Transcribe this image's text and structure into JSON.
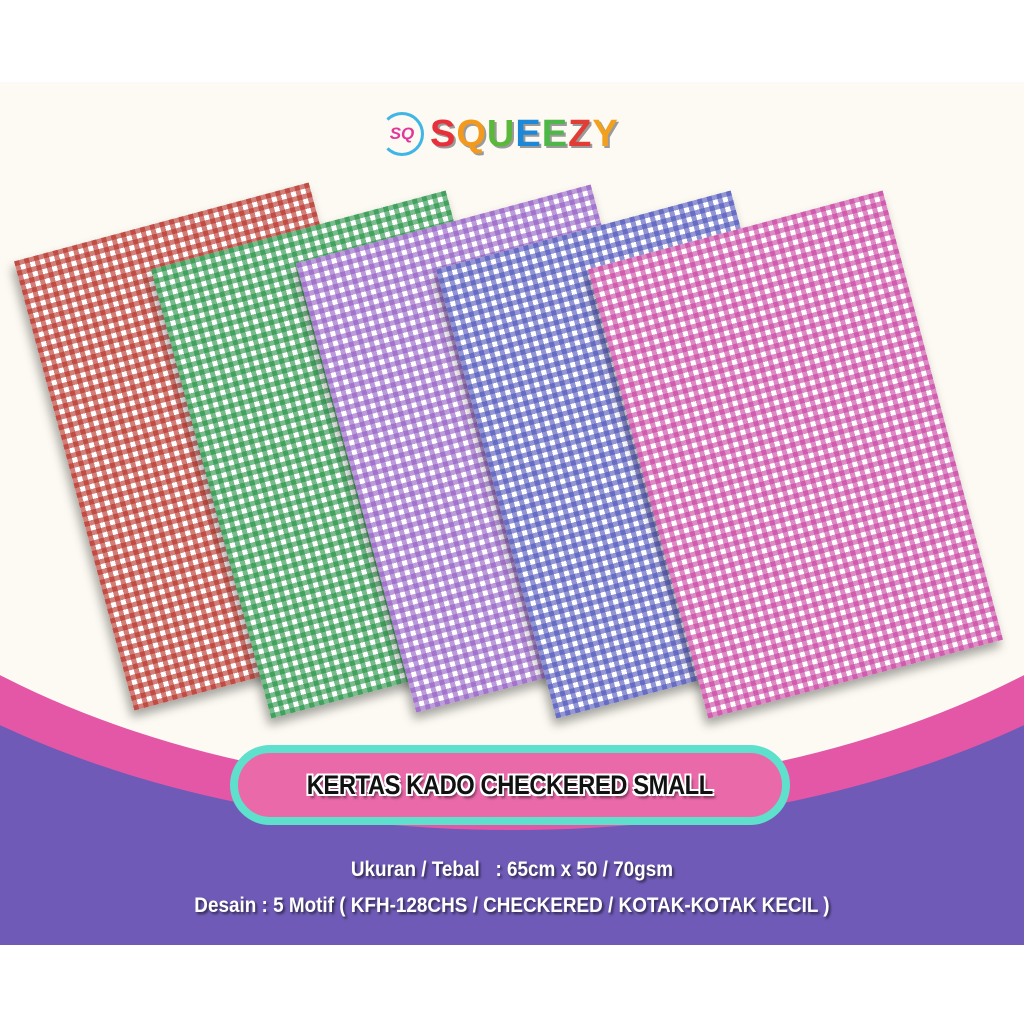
{
  "logo": {
    "mark": "SQ",
    "letters": [
      "S",
      "Q",
      "U",
      "E",
      "E",
      "Z",
      "Y"
    ],
    "letter_colors": [
      "#e8303a",
      "#f39a1e",
      "#5cb83a",
      "#1e88d8",
      "#4fb648",
      "#e23c36",
      "#f2a11f"
    ]
  },
  "sheets": [
    {
      "name": "red",
      "color": "#b52a20"
    },
    {
      "name": "green",
      "color": "#1f8f40"
    },
    {
      "name": "purple",
      "color": "#9059c2"
    },
    {
      "name": "blue",
      "color": "#4a50b8"
    },
    {
      "name": "pink",
      "color": "#c73d9f"
    }
  ],
  "banner": {
    "title": "KERTAS KADO CHECKERED SMALL"
  },
  "specs": {
    "size_line": "Ukuran / Tebal   : 65cm x 50 / 70gsm",
    "design_line": "Desain : 5 Motif ( KFH-128CHS / CHECKERED / KOTAK-KOTAK KECIL )"
  },
  "colors": {
    "purple_band": "#6f5bb7",
    "pink_arc": "#e457a6",
    "banner_border": "#5fe0cd",
    "banner_fill": "#ea69a9",
    "cream": "#fcfaf2"
  }
}
